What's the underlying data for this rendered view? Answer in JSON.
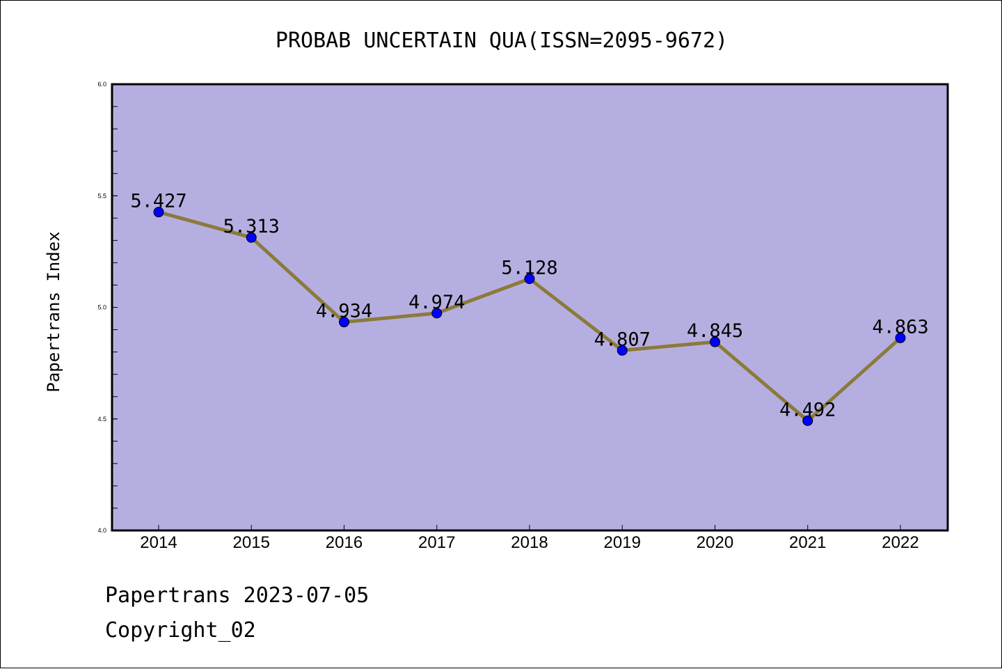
{
  "chart_data": {
    "type": "line",
    "title": "PROBAB UNCERTAIN QUA(ISSN=2095-9672)",
    "xlabel": "",
    "ylabel": "Papertrans Index",
    "categories": [
      "2014",
      "2015",
      "2016",
      "2017",
      "2018",
      "2019",
      "2020",
      "2021",
      "2022"
    ],
    "values": [
      5.427,
      5.313,
      4.934,
      4.974,
      5.128,
      4.807,
      4.845,
      4.492,
      4.863
    ],
    "data_labels": [
      "5.427",
      "5.313",
      "4.934",
      "4.974",
      "5.128",
      "4.807",
      "4.845",
      "4.492",
      "4.863"
    ],
    "ylim": [
      4.0,
      6.0
    ],
    "yticks": [
      "4.0",
      "4.5",
      "5.0",
      "5.5",
      "6.0"
    ],
    "grid": false,
    "colors": {
      "plot_background": "#b5afe1",
      "line": "#8b7a3a",
      "marker": "#0000ff"
    }
  },
  "footer": {
    "line1": "Papertrans 2023-07-05",
    "line2": "Copyright_02"
  }
}
